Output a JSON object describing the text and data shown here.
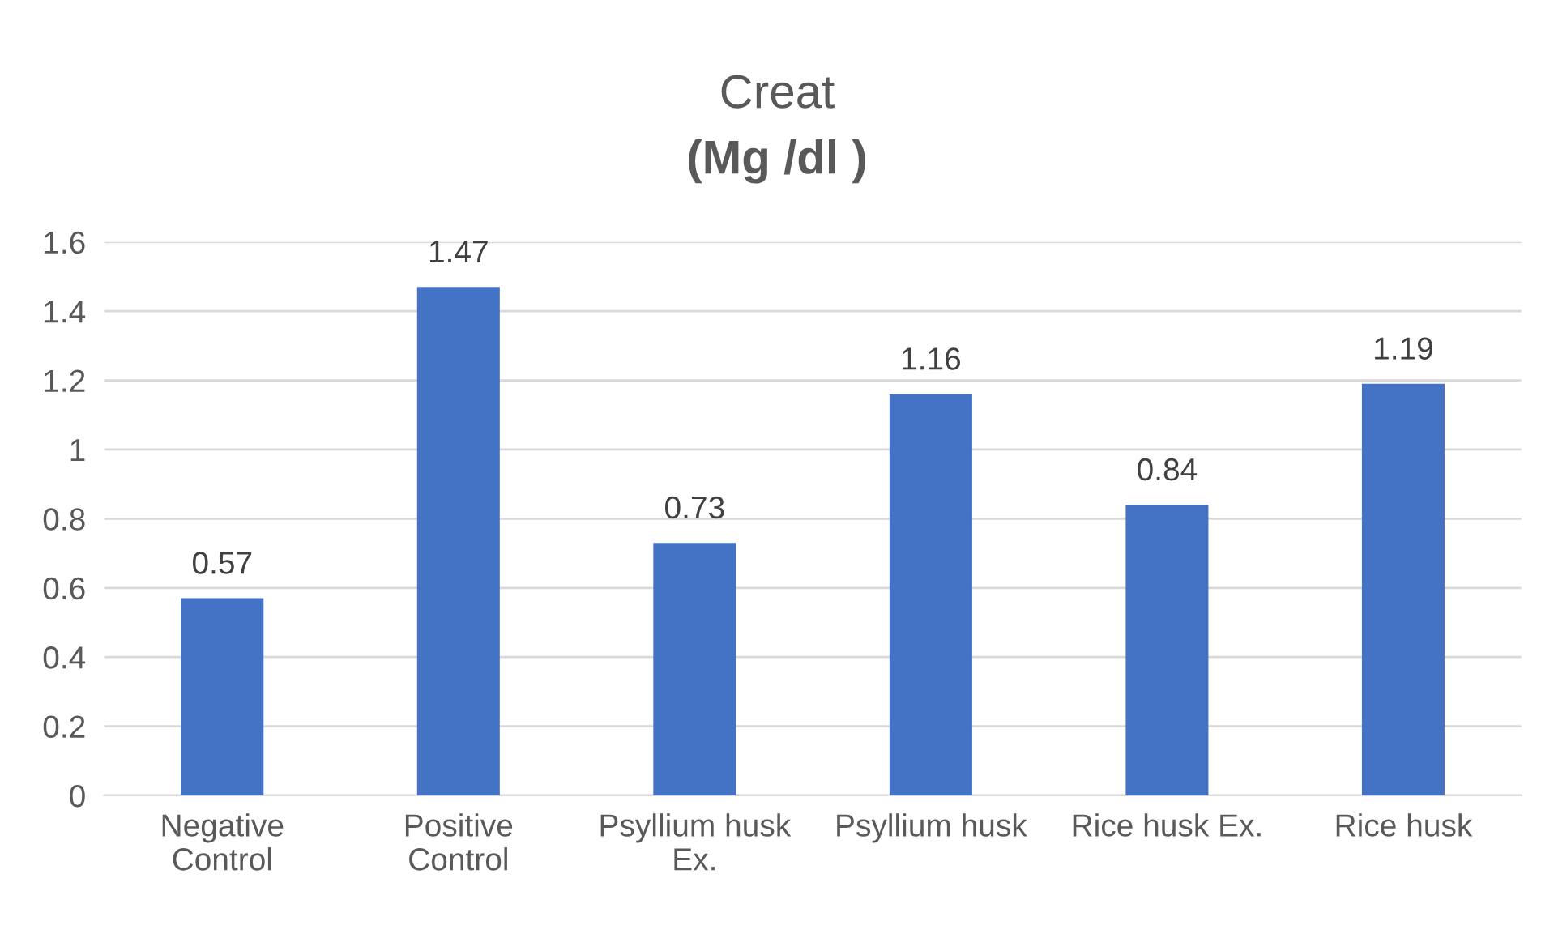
{
  "chart_data": {
    "type": "bar",
    "title": "Creat",
    "subtitle": "(Mg /dl )",
    "categories": [
      "Negative\nControl",
      "Positive\nControl",
      "Psyllium husk\nEx.",
      "Psyllium husk",
      "Rice husk Ex.",
      "Rice husk"
    ],
    "values": [
      0.57,
      1.47,
      0.73,
      1.16,
      0.84,
      1.19
    ],
    "color": "#4472c4",
    "ylim": [
      0,
      1.6
    ],
    "yticks": [
      0,
      0.2,
      0.4,
      0.6,
      0.8,
      1,
      1.2,
      1.4,
      1.6
    ],
    "grid": "y",
    "data_labels": true
  }
}
